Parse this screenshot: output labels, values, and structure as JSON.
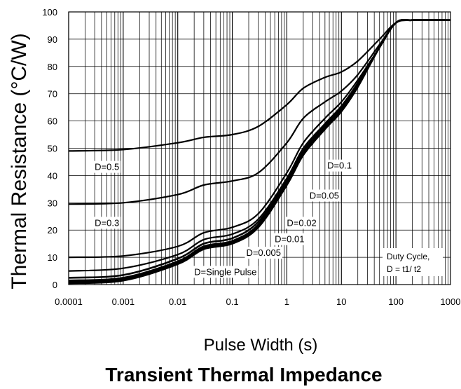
{
  "chart_data": {
    "type": "line",
    "title": "Transient Thermal Impedance",
    "xlabel": "Pulse Width (s)",
    "ylabel": "Thermal Resistance (°C/W)",
    "x_scale": "log",
    "xlim": [
      0.0001,
      1000
    ],
    "ylim": [
      0,
      100
    ],
    "grid": true,
    "x_ticks": [
      "0.0001",
      "0.001",
      "0.01",
      "0.1",
      "1",
      "10",
      "100",
      "1000"
    ],
    "y_ticks": [
      "0",
      "10",
      "20",
      "30",
      "40",
      "50",
      "60",
      "70",
      "80",
      "90",
      "100"
    ],
    "annotation": [
      "Duty Cycle,",
      "D = t1/ t2"
    ],
    "series": [
      {
        "name": "D=0.5",
        "x": [
          0.0001,
          0.001,
          0.01,
          0.03,
          0.1,
          0.3,
          1,
          2,
          5,
          10,
          20,
          50,
          100,
          200,
          1000
        ],
        "y": [
          49,
          49.5,
          52,
          54,
          55,
          58,
          66,
          72,
          76,
          78,
          82,
          90,
          96,
          97,
          97
        ]
      },
      {
        "name": "D=0.3",
        "x": [
          0.0001,
          0.001,
          0.01,
          0.03,
          0.1,
          0.3,
          1,
          2,
          5,
          10,
          20,
          50,
          100,
          200,
          1000
        ],
        "y": [
          29.5,
          30,
          33,
          36.5,
          38,
          41,
          52,
          61,
          67,
          71,
          77,
          88,
          96,
          97,
          97
        ]
      },
      {
        "name": "D=0.1",
        "x": [
          0.0001,
          0.001,
          0.01,
          0.03,
          0.1,
          0.3,
          1,
          2,
          5,
          10,
          20,
          50,
          100,
          200,
          1000
        ],
        "y": [
          10,
          10.5,
          14,
          19,
          21,
          26,
          41,
          52,
          61,
          67,
          75,
          87,
          96,
          97,
          97
        ]
      },
      {
        "name": "D=0.05",
        "x": [
          0.0001,
          0.001,
          0.01,
          0.03,
          0.1,
          0.3,
          1,
          2,
          5,
          10,
          20,
          50,
          100,
          200,
          1000
        ],
        "y": [
          5,
          6,
          11,
          16.5,
          18.5,
          24,
          39,
          50,
          59,
          65.5,
          74,
          87,
          96,
          97,
          97
        ]
      },
      {
        "name": "D=0.02",
        "x": [
          0.0001,
          0.001,
          0.01,
          0.03,
          0.1,
          0.3,
          1,
          2,
          5,
          10,
          20,
          50,
          100,
          200,
          1000
        ],
        "y": [
          2.5,
          3.5,
          9.5,
          15,
          17,
          23,
          38,
          49,
          58.5,
          65,
          73.5,
          87,
          96,
          97,
          97
        ]
      },
      {
        "name": "D=0.01",
        "x": [
          0.0001,
          0.001,
          0.01,
          0.03,
          0.1,
          0.3,
          1,
          2,
          5,
          10,
          20,
          50,
          100,
          200,
          1000
        ],
        "y": [
          1.5,
          2.5,
          8.5,
          14,
          16,
          22,
          37.5,
          48.5,
          58,
          64.5,
          73,
          87,
          96,
          97,
          97
        ]
      },
      {
        "name": "D=0.005",
        "x": [
          0.0001,
          0.001,
          0.01,
          0.03,
          0.1,
          0.3,
          1,
          2,
          5,
          10,
          20,
          50,
          100,
          200,
          1000
        ],
        "y": [
          1,
          2,
          8,
          13.5,
          15.5,
          21.5,
          37,
          48,
          57.5,
          64,
          73,
          87,
          96,
          97,
          97
        ]
      },
      {
        "name": "D=Single Pulse",
        "x": [
          0.0001,
          0.001,
          0.01,
          0.03,
          0.1,
          0.3,
          1,
          2,
          5,
          10,
          20,
          50,
          100,
          200,
          1000
        ],
        "y": [
          0.5,
          1.5,
          7.5,
          13,
          15,
          21,
          36.5,
          47.5,
          57,
          63.5,
          72.5,
          87,
          96,
          97,
          97
        ]
      }
    ],
    "curve_labels": [
      {
        "series": "D=0.5",
        "text": "D=0.5",
        "x": 0.0003,
        "y": 42
      },
      {
        "series": "D=0.3",
        "text": "D=0.3",
        "x": 0.0003,
        "y": 21.5
      },
      {
        "series": "D=0.1",
        "text": "D=0.1",
        "x": 5.5,
        "y": 42.5
      },
      {
        "series": "D=0.05",
        "text": "D=0.05",
        "x": 2.6,
        "y": 31.5
      },
      {
        "series": "D=0.02",
        "text": "D=0.02",
        "x": 1.0,
        "y": 21.5
      },
      {
        "series": "D=0.01",
        "text": "D=0.01",
        "x": 0.6,
        "y": 15.5
      },
      {
        "series": "D=0.005",
        "text": "D=0.005",
        "x": 0.18,
        "y": 10.5
      },
      {
        "series": "D=Single Pulse",
        "text": "D=Single Pulse",
        "x": 0.02,
        "y": 3.5
      }
    ]
  }
}
